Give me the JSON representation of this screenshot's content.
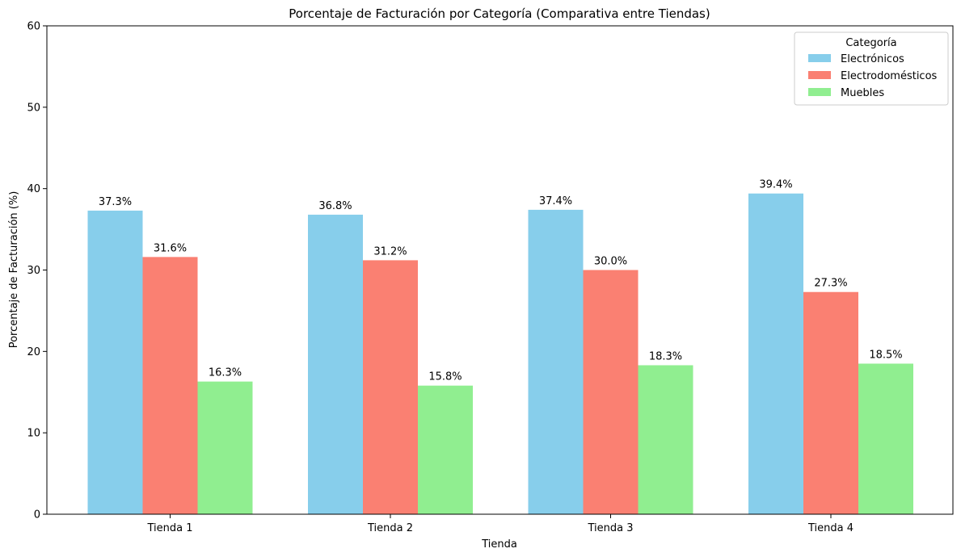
{
  "chart_data": {
    "type": "bar",
    "title": "Porcentaje de Facturación por Categoría (Comparativa entre Tiendas)",
    "xlabel": "Tienda",
    "ylabel": "Porcentaje de Facturación (%)",
    "ylim": [
      0,
      60
    ],
    "yticks": [
      0,
      10,
      20,
      30,
      40,
      50,
      60
    ],
    "categories": [
      "Tienda 1",
      "Tienda 2",
      "Tienda 3",
      "Tienda 4"
    ],
    "series": [
      {
        "name": "Electrónicos",
        "color": "#87ceeb",
        "values": [
          37.3,
          36.8,
          37.4,
          39.4
        ],
        "labels": [
          "37.3%",
          "36.8%",
          "37.4%",
          "39.4%"
        ]
      },
      {
        "name": "Electrodomésticos",
        "color": "#fa8072",
        "values": [
          31.6,
          31.2,
          30.0,
          27.3
        ],
        "labels": [
          "31.6%",
          "31.2%",
          "30.0%",
          "27.3%"
        ]
      },
      {
        "name": "Muebles",
        "color": "#90ee90",
        "values": [
          16.3,
          15.8,
          18.3,
          18.5
        ],
        "labels": [
          "16.3%",
          "15.8%",
          "18.3%",
          "18.5%"
        ]
      }
    ],
    "legend": {
      "title": "Categoría",
      "position": "top-right"
    },
    "grid": false
  }
}
